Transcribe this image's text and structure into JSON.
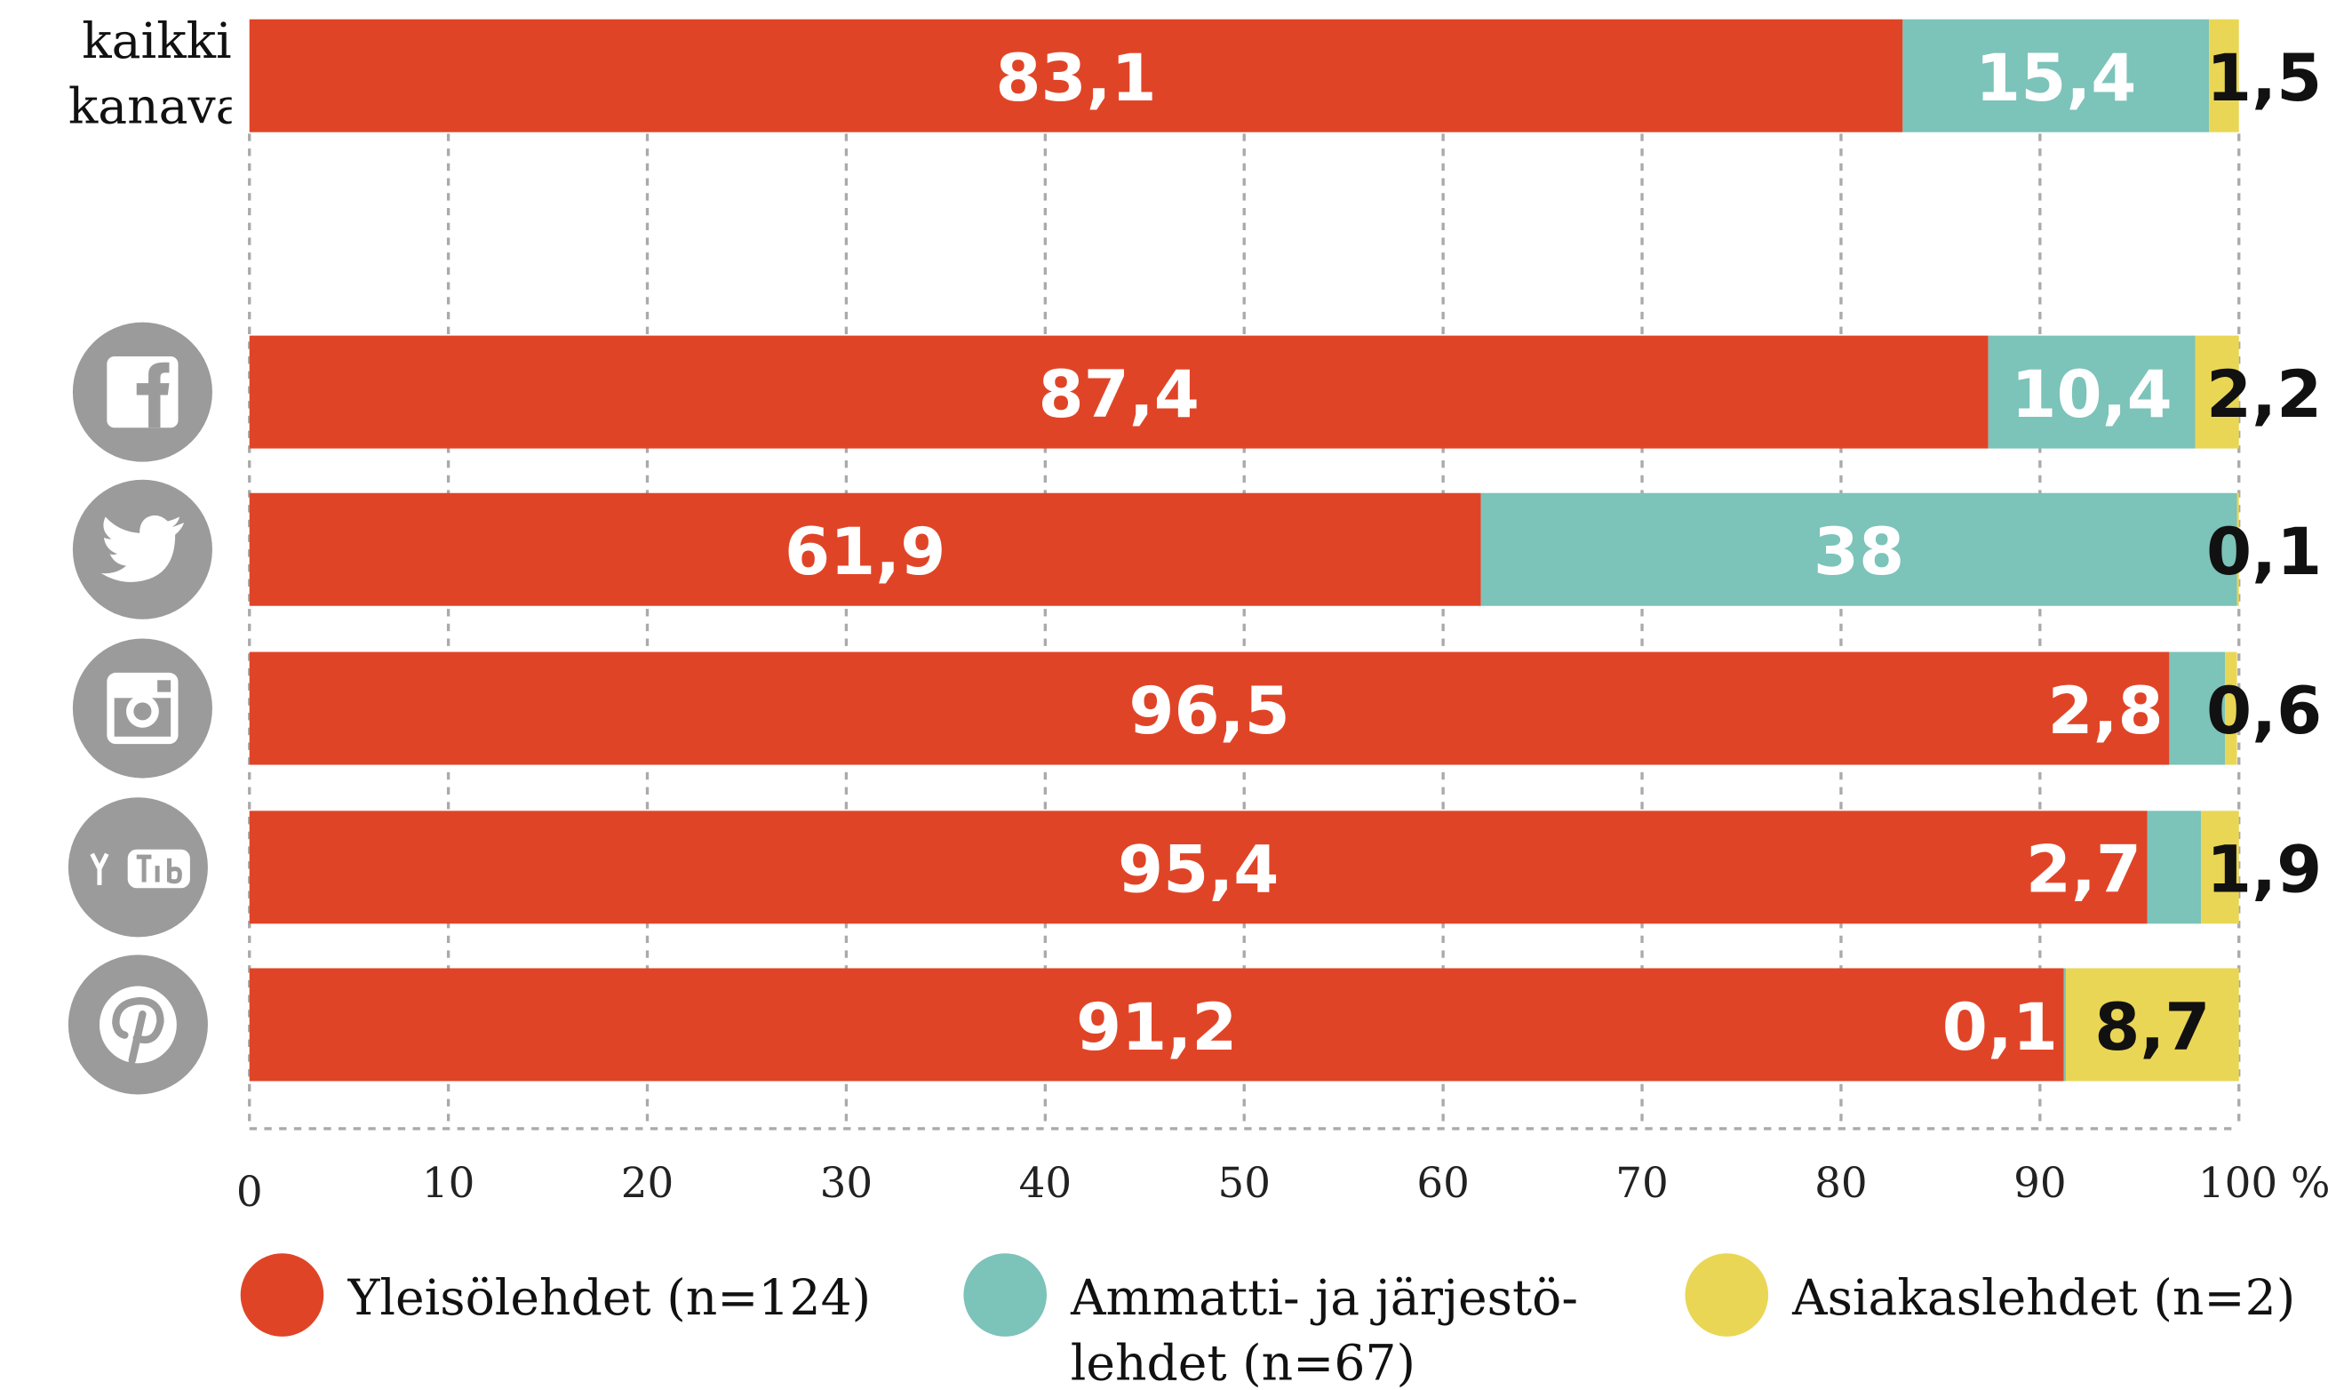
{
  "chart_data": {
    "type": "stacked-barh",
    "categories": [
      "kaikki kanavat",
      null,
      null,
      null,
      null,
      null
    ],
    "series": [
      {
        "name": "Yleisölehdet (n=124)",
        "color": "#e04427",
        "values": [
          83.1,
          87.4,
          61.9,
          96.5,
          95.4,
          91.2
        ],
        "value_labels": [
          "83,1",
          "87,4",
          "61,9",
          "96,5",
          "95,4",
          "91,2"
        ]
      },
      {
        "name": "Ammatti- ja järjestö- lehdet (n=67)",
        "color": "#7cc3b9",
        "values": [
          15.4,
          10.4,
          38,
          2.8,
          2.7,
          0.1
        ],
        "value_labels": [
          "15,4",
          "10,4",
          "38",
          "2,8",
          "2,7",
          "0,1"
        ]
      },
      {
        "name": "Asiakaslehdet (n=2)",
        "color": "#ead655",
        "values": [
          1.5,
          2.2,
          0.1,
          0.6,
          1.9,
          8.7
        ],
        "value_labels": [
          "1,5",
          "2,2",
          "0,1",
          "0,6",
          "1,9",
          "8,7"
        ]
      }
    ],
    "xlim": [
      0,
      100
    ],
    "xticks": [
      0,
      10,
      20,
      30,
      40,
      50,
      60,
      70,
      80,
      90,
      {
        "value": 100,
        "label": "100 %"
      }
    ],
    "grid": true
  }
}
